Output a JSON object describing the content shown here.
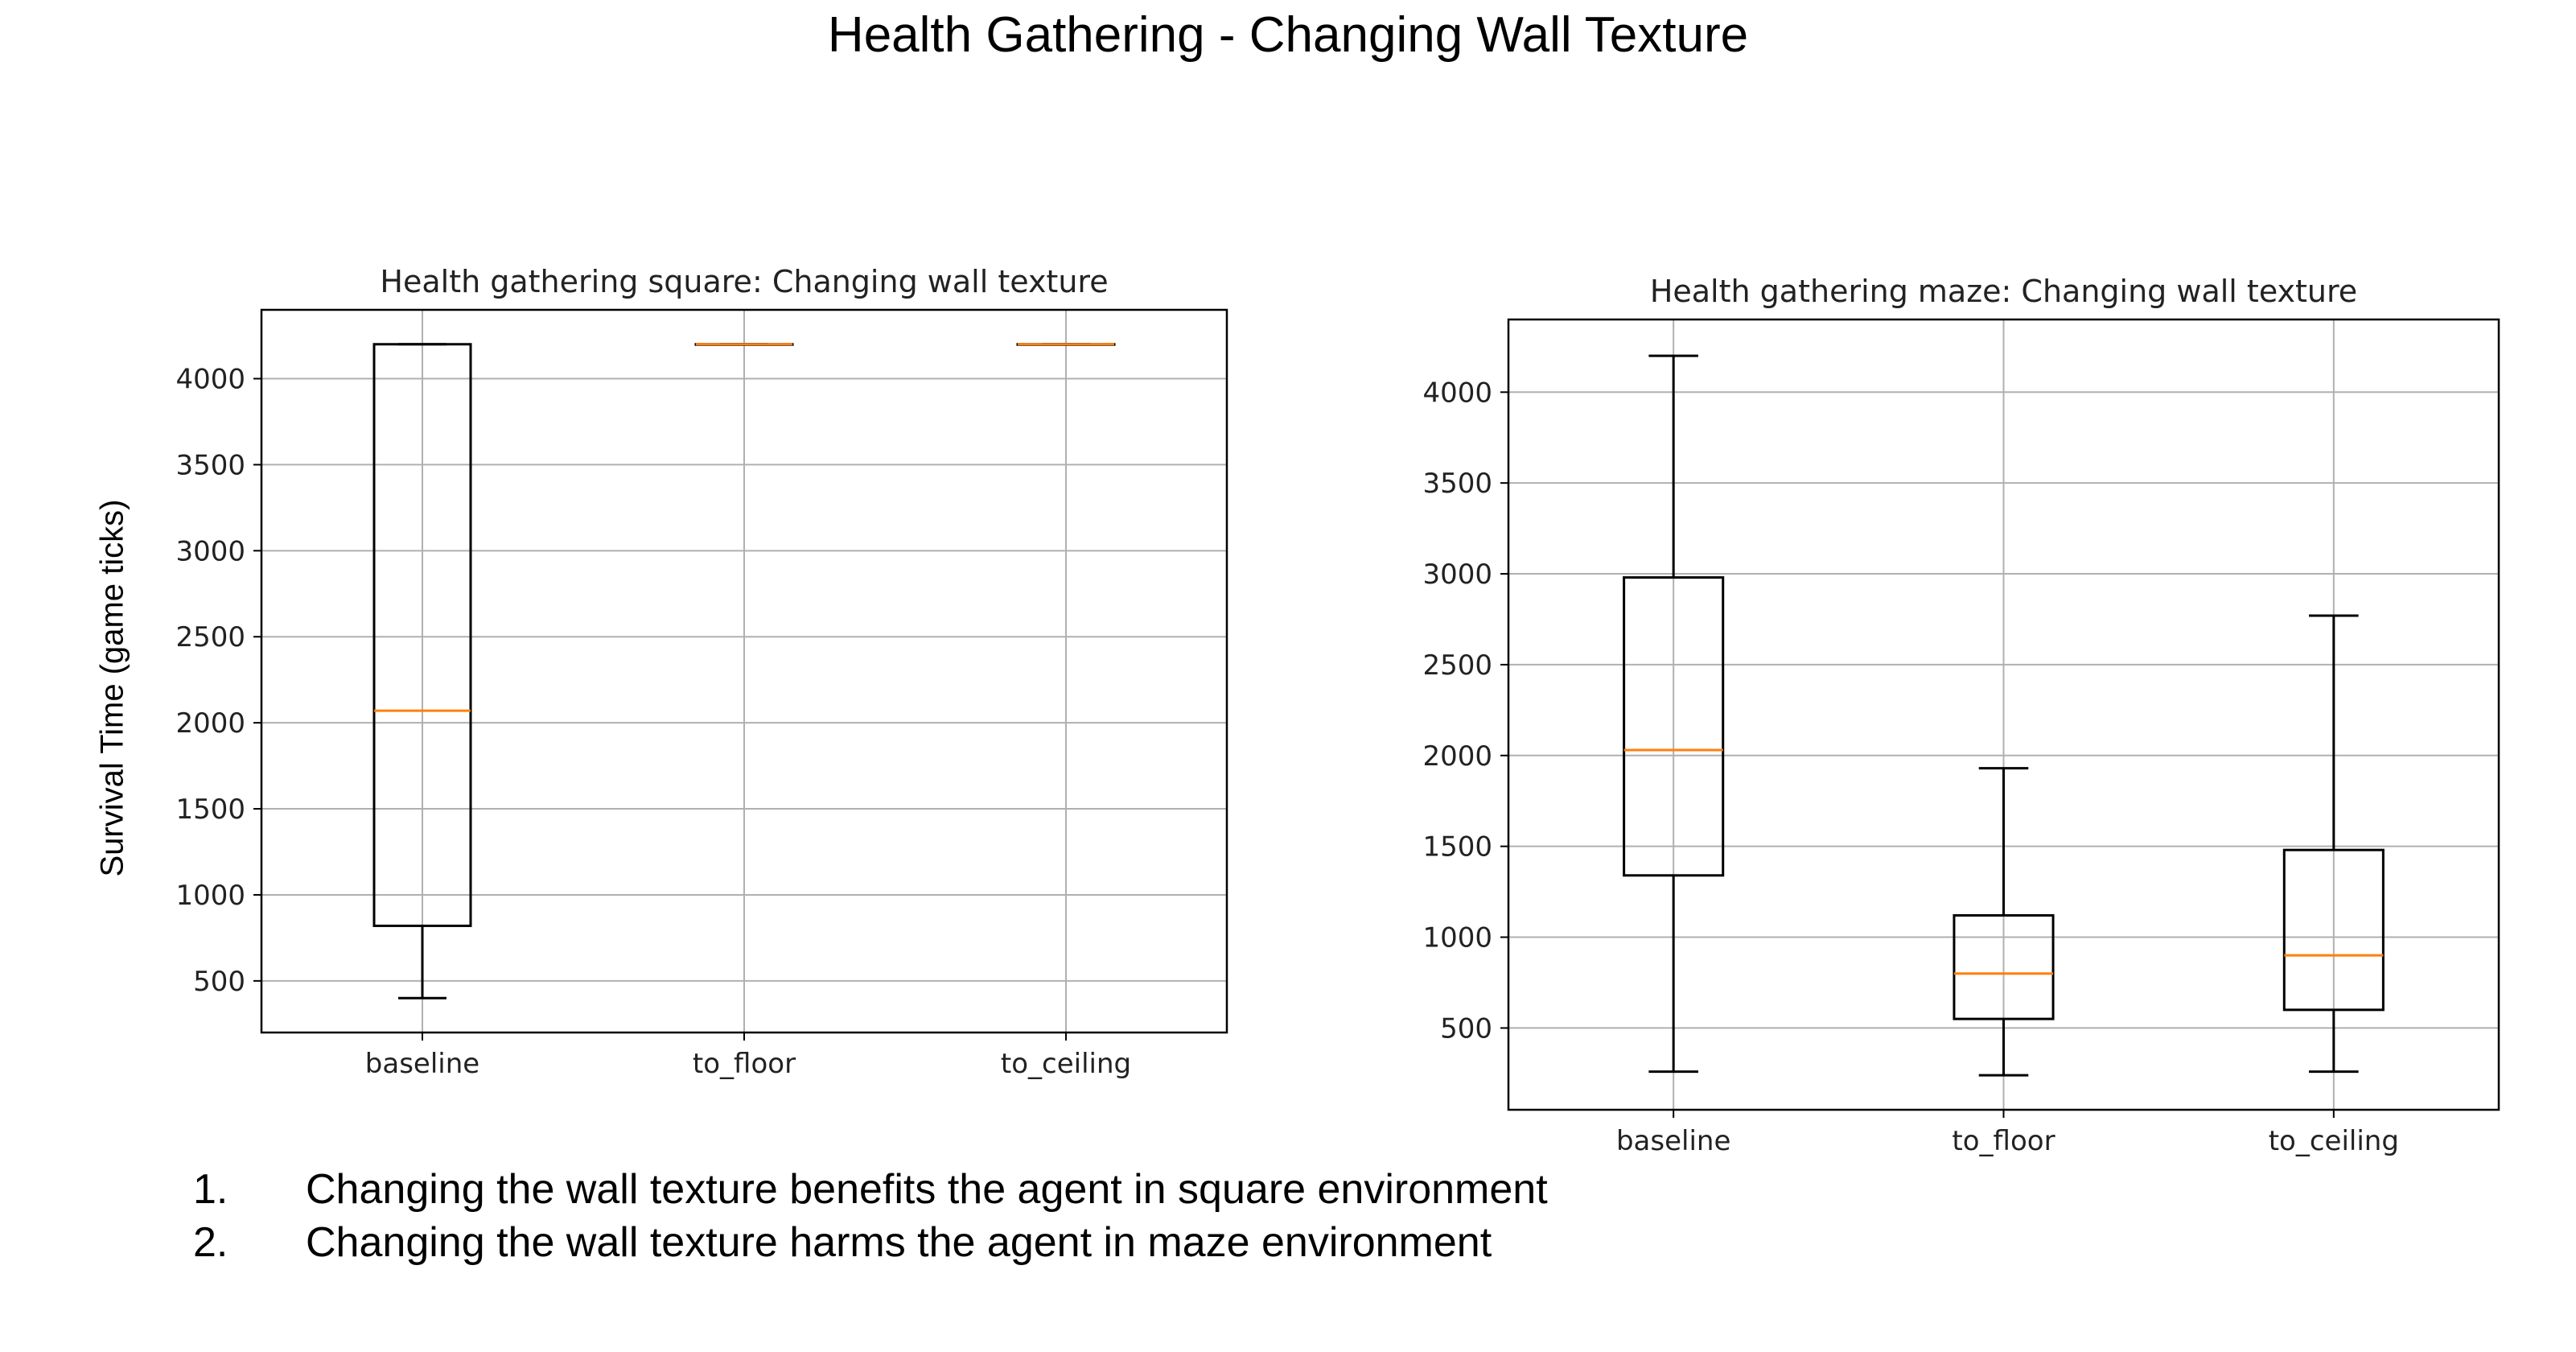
{
  "title": "Health Gathering - Changing Wall Texture",
  "ylabel": "Survival Time (game ticks)",
  "notes": [
    {
      "num": "1.",
      "text": "Changing the wall texture benefits the agent in square environment"
    },
    {
      "num": "2.",
      "text": "Changing the wall texture harms the agent in maze environment"
    }
  ],
  "colors": {
    "median": "#ff7f0e",
    "box": "#000000",
    "grid": "#b0b0b0"
  },
  "chart_data": [
    {
      "type": "box",
      "title": "Health gathering square: Changing wall texture",
      "ylabel": "Survival Time (game ticks)",
      "categories": [
        "baseline",
        "to_floor",
        "to_ceiling"
      ],
      "yticks": [
        500,
        1000,
        1500,
        2000,
        2500,
        3000,
        3500,
        4000
      ],
      "ylim": [
        200,
        4400
      ],
      "grid": true,
      "boxes": [
        {
          "whisker_low": 400,
          "q1": 820,
          "median": 2070,
          "q3": 4200,
          "whisker_high": 4200
        },
        {
          "whisker_low": 4200,
          "q1": 4200,
          "median": 4200,
          "q3": 4200,
          "whisker_high": 4200
        },
        {
          "whisker_low": 4200,
          "q1": 4200,
          "median": 4200,
          "q3": 4200,
          "whisker_high": 4200
        }
      ]
    },
    {
      "type": "box",
      "title": "Health gathering maze: Changing wall texture",
      "categories": [
        "baseline",
        "to_floor",
        "to_ceiling"
      ],
      "yticks": [
        500,
        1000,
        1500,
        2000,
        2500,
        3000,
        3500,
        4000
      ],
      "ylim": [
        50,
        4400
      ],
      "grid": true,
      "boxes": [
        {
          "whisker_low": 260,
          "q1": 1340,
          "median": 2030,
          "q3": 2980,
          "whisker_high": 4200
        },
        {
          "whisker_low": 240,
          "q1": 550,
          "median": 800,
          "q3": 1120,
          "whisker_high": 1930
        },
        {
          "whisker_low": 260,
          "q1": 600,
          "median": 900,
          "q3": 1480,
          "whisker_high": 2770
        }
      ]
    }
  ]
}
